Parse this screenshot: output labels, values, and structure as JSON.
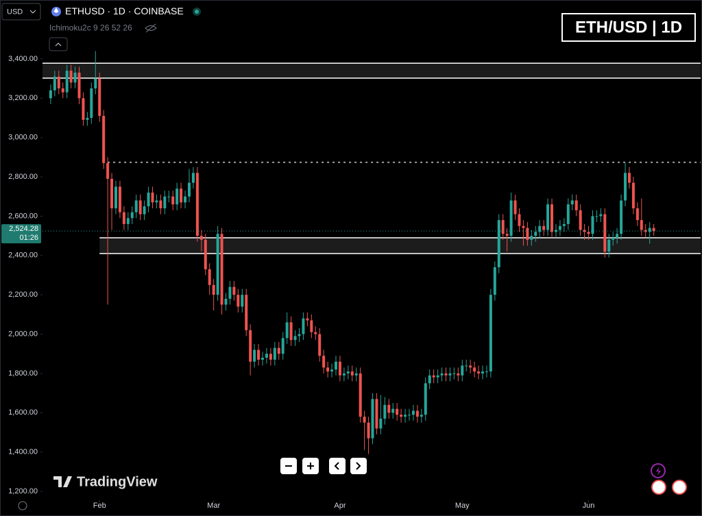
{
  "ui": {
    "currency": "USD",
    "symbol": "ETHUSD · 1D · COINBASE",
    "indicator": "Ichimoku2c 9 26 52 26",
    "brand": "TradingView"
  },
  "chart_data": {
    "type": "candlestick",
    "title": "ETH/USD | 1D",
    "up_color": "#26a69a",
    "down_color": "#ef5350",
    "xlim": [
      -14,
      147.5
    ],
    "ylim": [
      1155,
      3595
    ],
    "xticks": [
      {
        "value": 0,
        "label": "Feb"
      },
      {
        "value": 28,
        "label": "Mar"
      },
      {
        "value": 59,
        "label": "Apr"
      },
      {
        "value": 89,
        "label": "May"
      },
      {
        "value": 120,
        "label": "Jun"
      }
    ],
    "yticks": [
      {
        "value": 1200,
        "label": "1,200.00"
      },
      {
        "value": 1400,
        "label": "1,400.00"
      },
      {
        "value": 1600,
        "label": "1,600.00"
      },
      {
        "value": 1800,
        "label": "1,800.00"
      },
      {
        "value": 2000,
        "label": "2,000.00"
      },
      {
        "value": 2200,
        "label": "2,200.00"
      },
      {
        "value": 2400,
        "label": "2,400.00"
      },
      {
        "value": 2600,
        "label": "2,600.00"
      },
      {
        "value": 2800,
        "label": "2,800.00"
      },
      {
        "value": 3000,
        "label": "3,000.00"
      },
      {
        "value": 3200,
        "label": "3,200.00"
      },
      {
        "value": 3400,
        "label": "3,400.00"
      }
    ],
    "zones": [
      {
        "start": -14,
        "low": 3302,
        "high": 3378
      },
      {
        "start": 0,
        "low": 2410,
        "high": 2490
      }
    ],
    "levels": [
      {
        "start": 2,
        "value": 2874
      }
    ],
    "last_price": {
      "value": 2524.28,
      "label": "2,524.28"
    },
    "countdown": "01:26",
    "x": [
      -12,
      -11,
      -10,
      -9,
      -8,
      -7,
      -6,
      -5,
      -4,
      -3,
      -2,
      -1,
      0,
      1,
      2,
      3,
      4,
      5,
      6,
      7,
      8,
      9,
      10,
      11,
      12,
      13,
      14,
      15,
      16,
      17,
      18,
      19,
      20,
      21,
      22,
      23,
      24,
      25,
      26,
      27,
      28,
      29,
      30,
      31,
      32,
      33,
      34,
      35,
      36,
      37,
      38,
      39,
      40,
      41,
      42,
      43,
      44,
      45,
      46,
      47,
      48,
      49,
      50,
      51,
      52,
      53,
      54,
      55,
      56,
      57,
      58,
      59,
      60,
      61,
      62,
      63,
      64,
      65,
      66,
      67,
      68,
      69,
      70,
      71,
      72,
      73,
      74,
      75,
      76,
      77,
      78,
      79,
      80,
      81,
      82,
      83,
      84,
      85,
      86,
      87,
      88,
      89,
      90,
      91,
      92,
      93,
      94,
      95,
      96,
      97,
      98,
      99,
      100,
      101,
      102,
      103,
      104,
      105,
      106,
      107,
      108,
      109,
      110,
      111,
      112,
      113,
      114,
      115,
      116,
      117,
      118,
      119,
      120,
      121,
      122,
      123,
      124,
      125,
      126,
      127,
      128,
      129,
      130,
      131,
      132,
      133,
      134,
      135,
      136
    ],
    "open": [
      3200,
      3240,
      3310,
      3250,
      3230,
      3340,
      3280,
      3330,
      3200,
      3090,
      3100,
      3250,
      3300,
      3110,
      2870,
      2790,
      2640,
      2750,
      2620,
      2560,
      2590,
      2620,
      2680,
      2610,
      2650,
      2720,
      2670,
      2680,
      2640,
      2700,
      2700,
      2660,
      2740,
      2670,
      2700,
      2770,
      2820,
      2500,
      2480,
      2330,
      2250,
      2200,
      2510,
      2150,
      2180,
      2240,
      2200,
      2140,
      2200,
      2020,
      1860,
      1920,
      1870,
      1880,
      1900,
      1870,
      1930,
      1900,
      1980,
      2060,
      1970,
      1990,
      2000,
      2080,
      2070,
      2010,
      2000,
      1890,
      1830,
      1810,
      1820,
      1860,
      1790,
      1800,
      1810,
      1790,
      1800,
      1580,
      1550,
      1470,
      1670,
      1520,
      1570,
      1640,
      1600,
      1620,
      1590,
      1580,
      1590,
      1590,
      1610,
      1580,
      1590,
      1750,
      1790,
      1780,
      1790,
      1800,
      1790,
      1800,
      1800,
      1790,
      1840,
      1840,
      1830,
      1810,
      1800,
      1810,
      1810,
      2200,
      2340,
      2580,
      2510,
      2500,
      2680,
      2610,
      2550,
      2540,
      2480,
      2500,
      2520,
      2550,
      2530,
      2660,
      2520,
      2530,
      2550,
      2560,
      2660,
      2680,
      2630,
      2530,
      2520,
      2510,
      2600,
      2600,
      2610,
      2420,
      2480,
      2490,
      2510,
      2680,
      2820,
      2770,
      2640,
      2580,
      2530,
      2520,
      2540
    ],
    "high": [
      3270,
      3340,
      3340,
      3280,
      3370,
      3370,
      3360,
      3360,
      3230,
      3130,
      3280,
      3440,
      3330,
      3140,
      2900,
      2820,
      2780,
      2780,
      2650,
      2620,
      2650,
      2710,
      2710,
      2680,
      2750,
      2750,
      2710,
      2710,
      2730,
      2730,
      2730,
      2770,
      2770,
      2730,
      2840,
      2850,
      2850,
      2530,
      2510,
      2360,
      2280,
      2550,
      2540,
      2210,
      2270,
      2270,
      2230,
      2230,
      2230,
      2050,
      1950,
      1950,
      1910,
      1930,
      1930,
      1960,
      1960,
      2010,
      2110,
      2090,
      2020,
      2030,
      2110,
      2110,
      2100,
      2040,
      2030,
      1920,
      1860,
      1850,
      1890,
      1890,
      1830,
      1840,
      1840,
      1830,
      1830,
      1610,
      1580,
      1700,
      1700,
      1690,
      1680,
      1670,
      1650,
      1650,
      1620,
      1620,
      1620,
      1640,
      1640,
      1620,
      1780,
      1820,
      1820,
      1820,
      1830,
      1830,
      1830,
      1830,
      1830,
      1870,
      1870,
      1870,
      1860,
      1840,
      1840,
      1840,
      2230,
      2370,
      2610,
      2610,
      2540,
      2720,
      2710,
      2640,
      2580,
      2570,
      2530,
      2550,
      2580,
      2580,
      2690,
      2690,
      2560,
      2580,
      2590,
      2690,
      2710,
      2710,
      2660,
      2560,
      2550,
      2630,
      2630,
      2640,
      2640,
      2510,
      2520,
      2540,
      2710,
      2870,
      2850,
      2800,
      2670,
      2690,
      2560,
      2570,
      2560
    ],
    "low": [
      3170,
      3210,
      3220,
      3200,
      3200,
      3250,
      3250,
      3170,
      3060,
      3060,
      3070,
      3220,
      3080,
      2840,
      2150,
      2530,
      2610,
      2590,
      2530,
      2530,
      2560,
      2590,
      2580,
      2580,
      2620,
      2640,
      2640,
      2610,
      2610,
      2670,
      2630,
      2630,
      2640,
      2640,
      2670,
      2740,
      2470,
      2420,
      2300,
      2200,
      2120,
      2170,
      2100,
      2120,
      2150,
      2170,
      2110,
      2110,
      1990,
      1790,
      1830,
      1840,
      1840,
      1850,
      1840,
      1840,
      1870,
      1870,
      1950,
      1940,
      1940,
      1960,
      1970,
      2040,
      1980,
      1970,
      1860,
      1800,
      1780,
      1780,
      1790,
      1760,
      1760,
      1770,
      1760,
      1760,
      1550,
      1410,
      1390,
      1440,
      1490,
      1490,
      1540,
      1570,
      1570,
      1560,
      1550,
      1550,
      1560,
      1560,
      1550,
      1550,
      1560,
      1720,
      1750,
      1750,
      1760,
      1760,
      1760,
      1770,
      1760,
      1760,
      1810,
      1800,
      1780,
      1770,
      1770,
      1780,
      1780,
      2170,
      2310,
      2480,
      2420,
      2470,
      2580,
      2520,
      2450,
      2450,
      2450,
      2470,
      2490,
      2500,
      2500,
      2490,
      2490,
      2500,
      2520,
      2530,
      2630,
      2600,
      2500,
      2480,
      2480,
      2480,
      2570,
      2570,
      2390,
      2390,
      2450,
      2460,
      2480,
      2650,
      2740,
      2610,
      2550,
      2500,
      2490,
      2460,
      2500
    ],
    "close": [
      3240,
      3310,
      3250,
      3230,
      3340,
      3280,
      3330,
      3200,
      3090,
      3100,
      3250,
      3300,
      3110,
      2870,
      2790,
      2640,
      2750,
      2620,
      2560,
      2590,
      2620,
      2680,
      2610,
      2650,
      2720,
      2670,
      2680,
      2640,
      2700,
      2700,
      2660,
      2740,
      2670,
      2700,
      2770,
      2820,
      2500,
      2480,
      2330,
      2250,
      2200,
      2510,
      2150,
      2180,
      2240,
      2200,
      2140,
      2200,
      2020,
      1860,
      1920,
      1870,
      1880,
      1900,
      1870,
      1930,
      1900,
      1980,
      2060,
      1970,
      1990,
      2000,
      2080,
      2070,
      2010,
      2000,
      1890,
      1830,
      1810,
      1820,
      1860,
      1790,
      1800,
      1810,
      1790,
      1800,
      1580,
      1550,
      1470,
      1670,
      1520,
      1570,
      1640,
      1600,
      1620,
      1590,
      1580,
      1590,
      1590,
      1610,
      1580,
      1590,
      1750,
      1790,
      1780,
      1790,
      1800,
      1790,
      1800,
      1800,
      1790,
      1840,
      1840,
      1830,
      1810,
      1800,
      1810,
      1810,
      2200,
      2340,
      2580,
      2510,
      2500,
      2680,
      2610,
      2550,
      2540,
      2480,
      2500,
      2520,
      2550,
      2530,
      2660,
      2520,
      2530,
      2550,
      2560,
      2660,
      2680,
      2630,
      2530,
      2520,
      2510,
      2600,
      2600,
      2610,
      2420,
      2480,
      2490,
      2510,
      2680,
      2820,
      2770,
      2640,
      2580,
      2530,
      2520,
      2540,
      2524.28
    ]
  }
}
